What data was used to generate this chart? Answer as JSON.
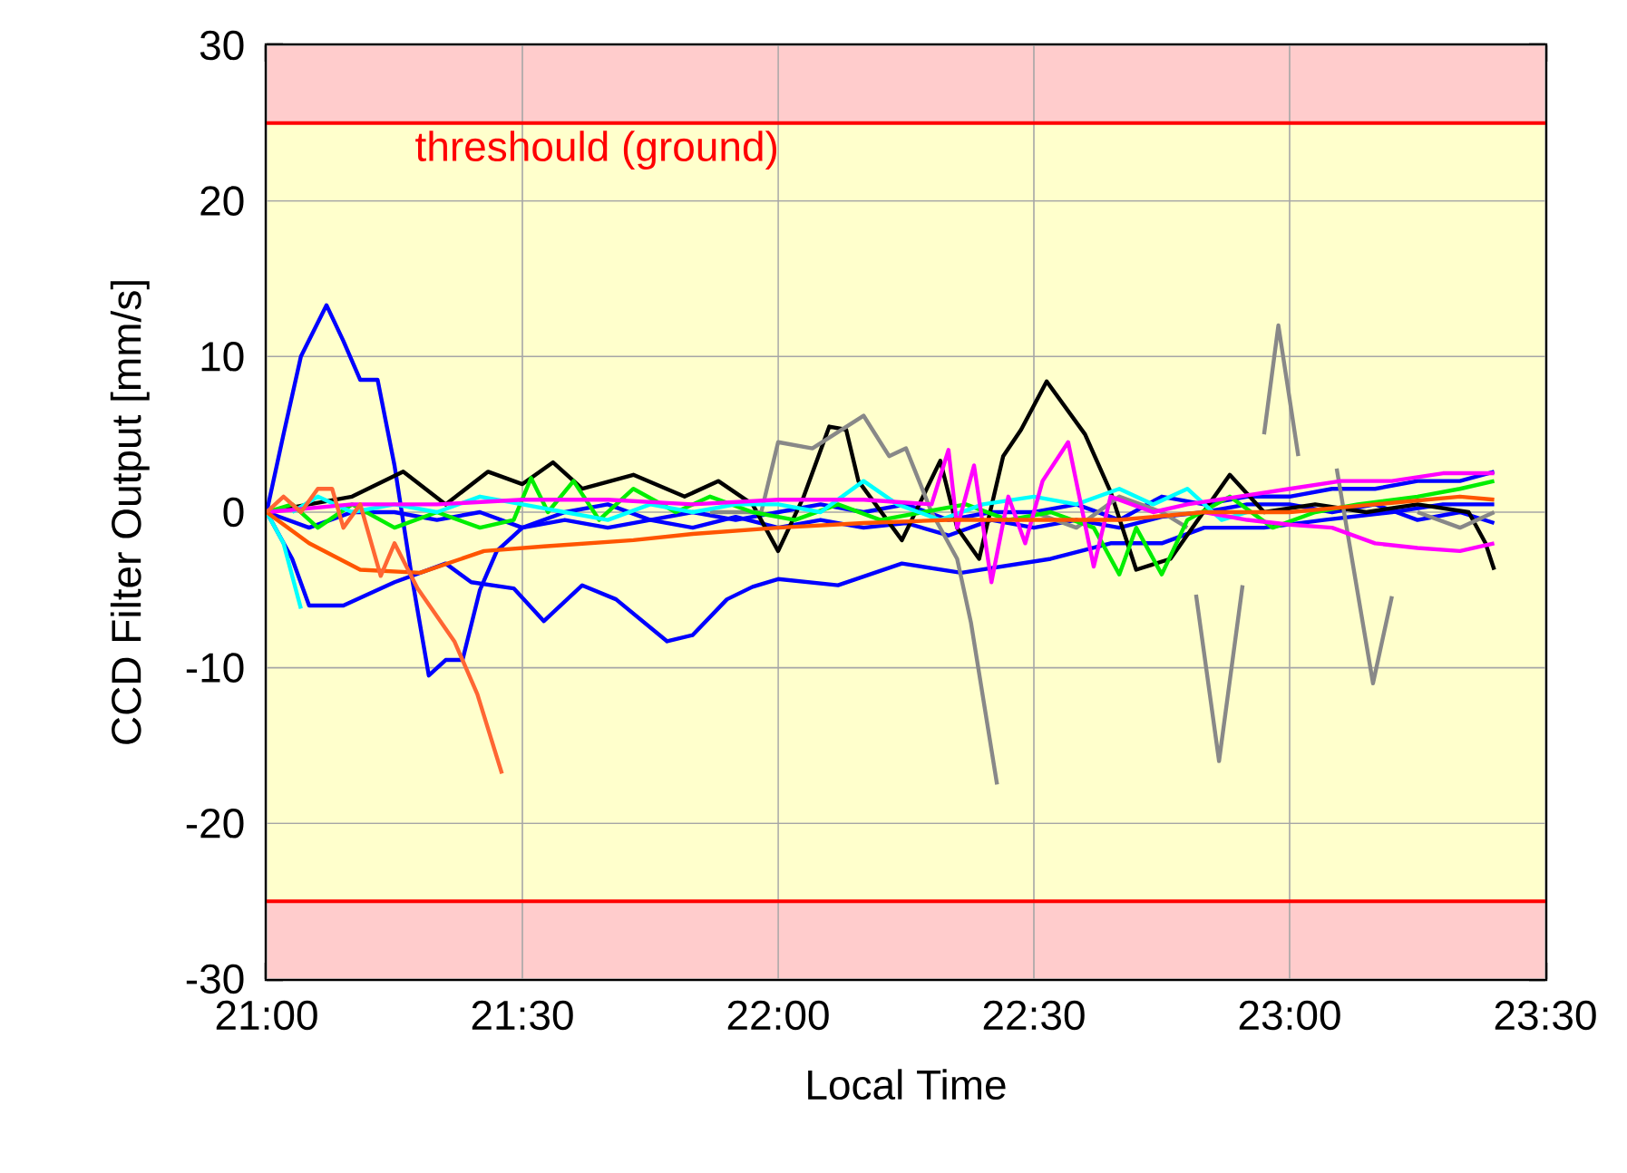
{
  "chart_data": {
    "type": "line",
    "xlabel": "Local Time",
    "ylabel": "CCD Filter Output [mm/s]",
    "xlim": [
      21,
      23.5
    ],
    "ylim": [
      -30,
      30
    ],
    "xticks": [
      {
        "value": 21,
        "label": "21:00"
      },
      {
        "value": 21.5,
        "label": "21:30"
      },
      {
        "value": 22,
        "label": "22:00"
      },
      {
        "value": 22.5,
        "label": "22:30"
      },
      {
        "value": 23,
        "label": "23:00"
      },
      {
        "value": 23.5,
        "label": "23:30"
      }
    ],
    "yticks": [
      -30,
      -20,
      -10,
      0,
      10,
      20,
      30
    ],
    "grid": true,
    "marker": "none",
    "line_style": "solid",
    "bands": [
      {
        "axis": "y",
        "from": 25,
        "to": 30,
        "color": "#ffcccc"
      },
      {
        "axis": "y",
        "from": -25,
        "to": 25,
        "color": "#ffffcc"
      },
      {
        "axis": "y",
        "from": -30,
        "to": -25,
        "color": "#ffcccc"
      }
    ],
    "ref_lines": [
      {
        "axis": "y",
        "value": 25,
        "label": "threshould (ground)",
        "color": "#ff0000"
      },
      {
        "axis": "y",
        "value": -25,
        "color": "#ff0000"
      }
    ],
    "series": [
      {
        "color": "#0000ff",
        "x": [
          21.0,
          21.033,
          21.067,
          21.117,
          21.15,
          21.183,
          21.217,
          21.25,
          21.283,
          21.317,
          21.35,
          21.383,
          21.417,
          21.45,
          21.5,
          21.583,
          21.667,
          21.75,
          21.833,
          21.917,
          22.0,
          22.083,
          22.167,
          22.25,
          22.333,
          22.417,
          22.5,
          22.583,
          22.667,
          22.75,
          22.833,
          22.917,
          23.0,
          23.083,
          23.167,
          23.25,
          23.333,
          23.4
        ],
        "values": [
          0,
          5,
          10,
          13.3,
          11,
          8.5,
          8.5,
          3,
          -4,
          -10.5,
          -9.5,
          -9.5,
          -5,
          -2.5,
          -1,
          -0.5,
          -1,
          -0.5,
          -1,
          -0.3,
          -1,
          -0.5,
          -1,
          -0.7,
          -1.5,
          -0.5,
          -1,
          -0.5,
          -1,
          -0.3,
          0,
          0.5,
          0.5,
          0,
          0.5,
          -0.5,
          0,
          -0.7
        ]
      },
      {
        "color": "#0000ff",
        "x": [
          21.0,
          21.05,
          21.083,
          21.15,
          21.25,
          21.35,
          21.4,
          21.483,
          21.542,
          21.617,
          21.683,
          21.783,
          21.833,
          21.9,
          21.95,
          22.0,
          22.117,
          22.242,
          22.358,
          22.533,
          22.65,
          22.75,
          22.833,
          22.95,
          23.067,
          23.2,
          23.3,
          23.4
        ],
        "values": [
          0,
          -3,
          -6,
          -6,
          -4.5,
          -3.3,
          -4.5,
          -4.9,
          -7,
          -4.7,
          -5.6,
          -8.3,
          -7.9,
          -5.6,
          -4.8,
          -4.3,
          -4.7,
          -3.3,
          -3.9,
          -3,
          -2,
          -2,
          -1,
          -1,
          -0.5,
          0,
          0.5,
          0.5
        ]
      },
      {
        "color": "#0000ff",
        "x": [
          21.0,
          21.083,
          21.167,
          21.25,
          21.333,
          21.417,
          21.5,
          21.583,
          21.667,
          21.75,
          21.833,
          21.917,
          22.0,
          22.083,
          22.167,
          22.25,
          22.333,
          22.417,
          22.5,
          22.583,
          22.667,
          22.75,
          22.833,
          22.917,
          23.0,
          23.083,
          23.167,
          23.25,
          23.333,
          23.4
        ],
        "values": [
          0,
          -1,
          0,
          0,
          -0.5,
          0,
          -1,
          0,
          0.5,
          -0.5,
          0,
          -0.5,
          0,
          0.5,
          0,
          0.5,
          -0.5,
          0,
          0,
          0.5,
          -0.5,
          1,
          0.5,
          1,
          1,
          1.5,
          1.5,
          2,
          2,
          2.6
        ]
      },
      {
        "color": "#000000",
        "x": [
          21.0,
          21.083,
          21.167,
          21.267,
          21.35,
          21.433,
          21.5,
          21.56,
          21.617,
          21.717,
          21.817,
          21.883,
          21.95,
          22.0,
          22.05,
          22.1,
          22.133,
          22.157,
          22.242,
          22.317,
          22.35,
          22.393,
          22.44,
          22.475,
          22.525,
          22.6,
          22.65,
          22.7,
          22.767,
          22.883,
          22.95,
          23.05,
          23.15,
          23.25,
          23.35,
          23.383,
          23.4
        ],
        "values": [
          0,
          0.5,
          1,
          2.6,
          0.5,
          2.6,
          1.8,
          3.2,
          1.5,
          2.4,
          1,
          2,
          0.5,
          -2.5,
          1,
          5.5,
          5.3,
          2,
          -1.8,
          3.3,
          -1,
          -3,
          3.6,
          5.3,
          8.4,
          5,
          1.3,
          -3.7,
          -3,
          2.4,
          0,
          0.5,
          0,
          0.5,
          0,
          -2,
          -3.7
        ]
      },
      {
        "color": "#888888",
        "x": [
          21.867,
          21.967,
          22.0,
          22.067,
          22.167,
          22.217,
          22.25,
          22.3,
          22.35,
          22.377,
          22.428,
          22.467,
          22.5,
          22.583,
          22.667,
          22.75,
          22.8,
          22.81,
          22.817,
          22.862,
          22.908,
          22.933,
          22.95,
          22.978,
          23.017,
          23.05,
          23.092,
          23.163,
          23.2,
          23.233,
          23.25,
          23.333,
          23.4
        ],
        "values": [
          0,
          0,
          4.5,
          4.1,
          6.2,
          3.6,
          4.1,
          0,
          -3,
          -7.1,
          -17.5,
          null,
          0,
          -1,
          1,
          0,
          -1,
          null,
          -5.3,
          -16,
          -4.7,
          null,
          5,
          12,
          3.6,
          null,
          2.8,
          -11,
          -5.4,
          null,
          0,
          -1,
          0
        ]
      },
      {
        "color": "#00ee00",
        "x": [
          21.0,
          21.05,
          21.1,
          21.167,
          21.25,
          21.333,
          21.417,
          21.483,
          21.517,
          21.55,
          21.6,
          21.65,
          21.717,
          21.8,
          21.867,
          21.95,
          22.033,
          22.117,
          22.2,
          22.283,
          22.367,
          22.45,
          22.533,
          22.617,
          22.667,
          22.7,
          22.75,
          22.8,
          22.883,
          22.967,
          23.05,
          23.133,
          23.25,
          23.333,
          23.4
        ],
        "values": [
          0,
          0.5,
          -1,
          0.5,
          -1,
          0,
          -1,
          -0.5,
          2.2,
          0,
          2,
          -0.5,
          1.5,
          0,
          1,
          0,
          -0.5,
          0.5,
          -0.5,
          0,
          0.5,
          -0.5,
          0,
          -1,
          -4,
          -1,
          -4,
          -0.5,
          1,
          -1,
          0,
          0.5,
          1,
          1.5,
          2
        ]
      },
      {
        "color": "#00ffff",
        "x": [
          21.0,
          21.033,
          21.067
        ],
        "values": [
          0,
          -2,
          -6.2
        ]
      },
      {
        "color": "#00ffff",
        "x": [
          21.05,
          21.1,
          21.167,
          21.25,
          21.333,
          21.417,
          21.5,
          21.583,
          21.667,
          21.75,
          21.833,
          21.917,
          22.0,
          22.083,
          22.167,
          22.233,
          22.317,
          22.4,
          22.5,
          22.583,
          22.667,
          22.733,
          22.8,
          22.867,
          22.917
        ],
        "values": [
          0,
          1,
          0,
          0.5,
          0,
          1,
          0.5,
          0,
          -0.5,
          0.5,
          0,
          0.5,
          0.5,
          0,
          2,
          0.5,
          -0.5,
          0.5,
          1,
          0.5,
          1.5,
          0.5,
          1.5,
          -0.5,
          0
        ]
      },
      {
        "color": "#ff00ff",
        "x": [
          21.0,
          21.167,
          21.333,
          21.5,
          21.667,
          21.833,
          22.0,
          22.167,
          22.3,
          22.333,
          22.35,
          22.383,
          22.417,
          22.45,
          22.483,
          22.517,
          22.567,
          22.617,
          22.65,
          22.733,
          22.8,
          22.9,
          23.0,
          23.1,
          23.2,
          23.3,
          23.4
        ],
        "values": [
          0,
          0.5,
          0.5,
          0.8,
          0.8,
          0.5,
          0.8,
          0.8,
          0.5,
          4,
          -1,
          3,
          -4.5,
          1,
          -2,
          2,
          4.5,
          -3.5,
          1,
          0,
          0.5,
          1,
          1.5,
          2,
          2,
          2.5,
          2.5
        ]
      },
      {
        "color": "#ff00ff",
        "x": [
          22.833,
          22.917,
          23.0,
          23.083,
          23.167,
          23.25,
          23.333,
          23.4
        ],
        "values": [
          0,
          -0.5,
          -0.8,
          -1,
          -2,
          -2.3,
          -2.5,
          -2
        ]
      },
      {
        "color": "#ff5500",
        "x": [
          21.0,
          21.083,
          21.183,
          21.3,
          21.425,
          21.542,
          21.717,
          21.833,
          22.0,
          22.167,
          22.333,
          22.5,
          22.667,
          22.833,
          23.0,
          23.167,
          23.333,
          23.4
        ],
        "values": [
          0,
          -2,
          -3.7,
          -3.9,
          -2.5,
          -2.2,
          -1.8,
          -1.4,
          -1,
          -0.7,
          -0.5,
          -0.5,
          -0.5,
          0,
          0,
          0.5,
          1,
          0.8
        ]
      },
      {
        "color": "#ff6633",
        "x": [
          21.0,
          21.033,
          21.067,
          21.1,
          21.128,
          21.15,
          21.183,
          21.223,
          21.25,
          21.295,
          21.367,
          21.412,
          21.46
        ],
        "values": [
          0,
          1,
          0,
          1.5,
          1.5,
          -1,
          0.5,
          -4.1,
          -2,
          -4.9,
          -8.3,
          -11.7,
          -16.8
        ]
      }
    ]
  }
}
